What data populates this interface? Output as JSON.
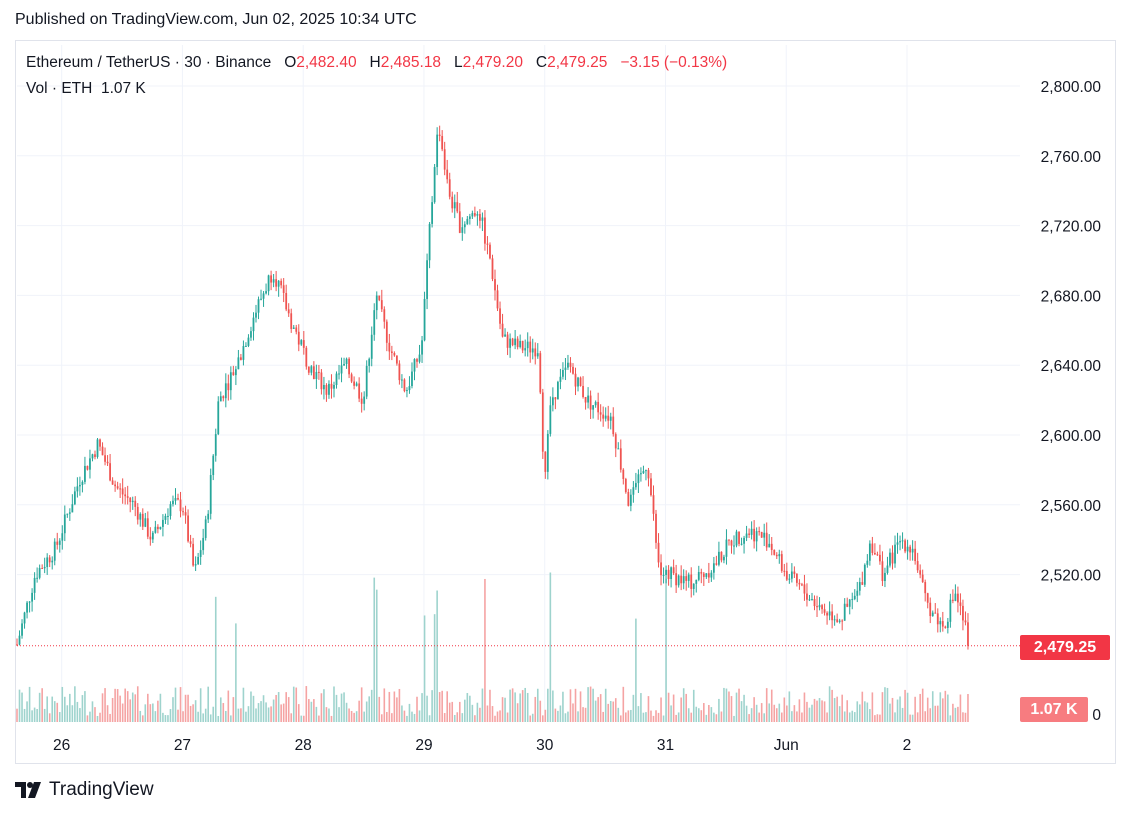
{
  "header": {
    "published": "Published on TradingView.com, Jun 02, 2025 10:34 UTC"
  },
  "legend": {
    "symbol": "Ethereum / TetherUS · 30 · Binance",
    "o_label": "O",
    "o_value": "2,482.40",
    "h_label": "H",
    "h_value": "2,485.18",
    "l_label": "L",
    "l_value": "2,479.20",
    "c_label": "C",
    "c_value": "2,479.25",
    "change": "−3.15 (−0.13%)",
    "vol_label": "Vol · ETH",
    "vol_value": "1.07 K"
  },
  "price_tag": "2,479.25",
  "volume_tag": "1.07 K",
  "footer": {
    "brand": "TradingView"
  },
  "colors": {
    "up": "#26a69a",
    "down": "#ef5350",
    "up_vol": "#9ed3cd",
    "down_vol": "#f5a3a3",
    "tag": "#f23645",
    "grid": "#f0f3fa"
  },
  "chart_data": {
    "type": "candlestick",
    "title": "Ethereum / TetherUS · 30 · Binance",
    "ylim": [
      2440,
      2810
    ],
    "y_ticks": [
      "2,800.00",
      "2,760.00",
      "2,720.00",
      "2,680.00",
      "2,640.00",
      "2,600.00",
      "2,560.00",
      "2,520.00"
    ],
    "y_tick_values": [
      2800,
      2760,
      2720,
      2680,
      2640,
      2600,
      2560,
      2520
    ],
    "x_ticks": [
      "26",
      "27",
      "28",
      "29",
      "30",
      "31",
      "Jun",
      "2"
    ],
    "x_tick_days": [
      26,
      27,
      28,
      29,
      30,
      31,
      32,
      33
    ],
    "x_range_days": [
      25.63,
      34.7
    ],
    "interval_minutes": 30,
    "last_price": 2479.25,
    "price_path": [
      [
        25.63,
        2480
      ],
      [
        25.78,
        2520
      ],
      [
        25.95,
        2535
      ],
      [
        26.15,
        2575
      ],
      [
        26.3,
        2595
      ],
      [
        26.45,
        2570
      ],
      [
        26.6,
        2560
      ],
      [
        26.75,
        2540
      ],
      [
        26.9,
        2560
      ],
      [
        27.0,
        2560
      ],
      [
        27.1,
        2520
      ],
      [
        27.2,
        2550
      ],
      [
        27.3,
        2620
      ],
      [
        27.45,
        2640
      ],
      [
        27.6,
        2670
      ],
      [
        27.75,
        2695
      ],
      [
        27.9,
        2665
      ],
      [
        28.05,
        2640
      ],
      [
        28.2,
        2625
      ],
      [
        28.35,
        2640
      ],
      [
        28.5,
        2620
      ],
      [
        28.6,
        2680
      ],
      [
        28.72,
        2650
      ],
      [
        28.85,
        2625
      ],
      [
        28.98,
        2650
      ],
      [
        29.05,
        2720
      ],
      [
        29.12,
        2780
      ],
      [
        29.2,
        2740
      ],
      [
        29.3,
        2720
      ],
      [
        29.45,
        2730
      ],
      [
        29.55,
        2700
      ],
      [
        29.65,
        2655
      ],
      [
        29.8,
        2650
      ],
      [
        29.95,
        2650
      ],
      [
        30.0,
        2570
      ],
      [
        30.05,
        2620
      ],
      [
        30.2,
        2640
      ],
      [
        30.35,
        2620
      ],
      [
        30.55,
        2610
      ],
      [
        30.7,
        2560
      ],
      [
        30.85,
        2585
      ],
      [
        30.95,
        2520
      ],
      [
        31.05,
        2520
      ],
      [
        31.2,
        2515
      ],
      [
        31.4,
        2525
      ],
      [
        31.55,
        2540
      ],
      [
        31.7,
        2545
      ],
      [
        31.85,
        2540
      ],
      [
        32.0,
        2520
      ],
      [
        32.15,
        2510
      ],
      [
        32.3,
        2500
      ],
      [
        32.45,
        2495
      ],
      [
        32.6,
        2510
      ],
      [
        32.7,
        2540
      ],
      [
        32.8,
        2520
      ],
      [
        32.95,
        2540
      ],
      [
        33.05,
        2535
      ],
      [
        33.15,
        2505
      ],
      [
        33.3,
        2490
      ],
      [
        33.4,
        2510
      ],
      [
        33.52,
        2480
      ]
    ],
    "volume_peak_days": [
      27.27,
      27.45,
      28.6,
      29.0,
      29.1,
      29.5,
      30.05,
      30.75,
      31.0
    ],
    "volume_axis_label": "0"
  }
}
